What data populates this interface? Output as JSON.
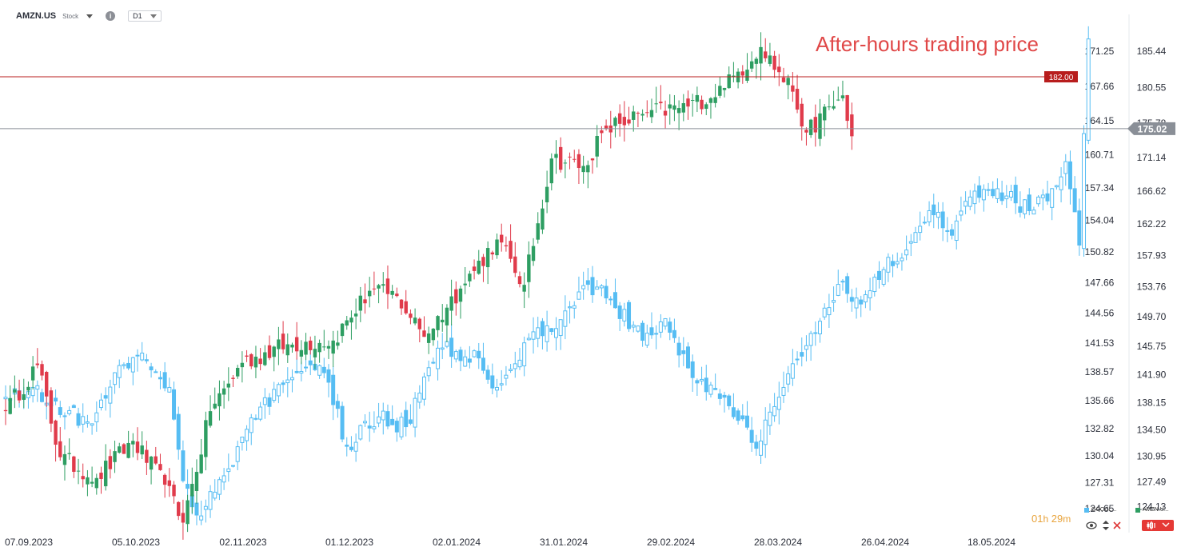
{
  "header": {
    "symbol": "AMZN.US",
    "instrument_type": "Stock",
    "interval": "D1"
  },
  "timer": {
    "hours": "01",
    "h_unit": "h",
    "minutes": "29",
    "m_unit": "m"
  },
  "legend": [
    {
      "name": "GOOGL...",
      "color": "#56bdf3"
    },
    {
      "name": "AMZN.U...",
      "color": "#2e9e62"
    }
  ],
  "colors": {
    "up": "#2e9e62",
    "down": "#e03b4b",
    "compare": "#56bdf3",
    "horizontal_line": "#b81d1d",
    "price_line": "#8a8f97",
    "annotation": "#e04848"
  },
  "chart_data": {
    "type": "candlestick",
    "annotation": "After-hours trading price",
    "x_tick_labels": [
      "07.09.2023",
      "05.10.2023",
      "02.11.2023",
      "01.12.2023",
      "02.01.2024",
      "31.01.2024",
      "29.02.2024",
      "28.03.2024",
      "26.04.2024",
      "18.05.2024"
    ],
    "left_axis": {
      "ylim": [
        122.7,
        175.0
      ],
      "ticks": [
        124.65,
        127.31,
        130.04,
        132.82,
        135.66,
        138.57,
        141.53,
        144.56,
        147.66,
        150.82,
        154.04,
        157.34,
        160.71,
        164.15,
        167.66,
        171.25
      ]
    },
    "right_axis": {
      "ylim": [
        121.3,
        190.4
      ],
      "ticks": [
        124.13,
        127.49,
        130.95,
        134.5,
        138.15,
        141.9,
        145.75,
        149.7,
        153.76,
        157.93,
        162.22,
        166.62,
        171.14,
        175.78,
        180.55,
        185.44
      ]
    },
    "horizontal_line": {
      "value": 182.0,
      "label": "182.00",
      "axis": "right"
    },
    "last_price": {
      "value": 175.02,
      "label": "175.02",
      "axis": "right"
    },
    "series": [
      {
        "name": "AMZN.U...",
        "axis": "right",
        "anchors": [
          {
            "i": 0,
            "close": 137.0
          },
          {
            "i": 7,
            "close": 143.2
          },
          {
            "i": 12,
            "close": 130.8
          },
          {
            "i": 20,
            "close": 128.0
          },
          {
            "i": 28,
            "close": 133.0
          },
          {
            "i": 35,
            "close": 127.1
          },
          {
            "i": 39,
            "close": 122.0
          },
          {
            "i": 45,
            "close": 137.0
          },
          {
            "i": 52,
            "close": 143.5
          },
          {
            "i": 62,
            "close": 146.0
          },
          {
            "i": 72,
            "close": 146.5
          },
          {
            "i": 80,
            "close": 153.2
          },
          {
            "i": 86,
            "close": 152.5
          },
          {
            "i": 92,
            "close": 147.0
          },
          {
            "i": 100,
            "close": 153.5
          },
          {
            "i": 108,
            "close": 160.1
          },
          {
            "i": 114,
            "close": 154.0
          },
          {
            "i": 120,
            "close": 171.0
          },
          {
            "i": 127,
            "close": 170.0
          },
          {
            "i": 132,
            "close": 175.0
          },
          {
            "i": 140,
            "close": 177.0
          },
          {
            "i": 150,
            "close": 178.0
          },
          {
            "i": 158,
            "close": 180.5
          },
          {
            "i": 166,
            "close": 186.0
          },
          {
            "i": 173,
            "close": 180.0
          },
          {
            "i": 176,
            "close": 174.5
          },
          {
            "i": 184,
            "close": 179.5
          },
          {
            "i": 186,
            "close": 174.0
          }
        ]
      },
      {
        "name": "GOOGL...",
        "axis": "left",
        "anchors": [
          {
            "i": 0,
            "close": 136.0
          },
          {
            "i": 6,
            "close": 137.0
          },
          {
            "i": 10,
            "close": 135.5
          },
          {
            "i": 19,
            "close": 133.3
          },
          {
            "i": 24,
            "close": 138.5
          },
          {
            "i": 30,
            "close": 140.5
          },
          {
            "i": 36,
            "close": 137.0
          },
          {
            "i": 39,
            "close": 127.5
          },
          {
            "i": 42,
            "close": 124.0
          },
          {
            "i": 48,
            "close": 128.0
          },
          {
            "i": 56,
            "close": 135.0
          },
          {
            "i": 64,
            "close": 138.5
          },
          {
            "i": 70,
            "close": 138.5
          },
          {
            "i": 75,
            "close": 131.0
          },
          {
            "i": 82,
            "close": 134.0
          },
          {
            "i": 88,
            "close": 133.0
          },
          {
            "i": 95,
            "close": 141.0
          },
          {
            "i": 104,
            "close": 140.0
          },
          {
            "i": 108,
            "close": 137.0
          },
          {
            "i": 115,
            "close": 142.0
          },
          {
            "i": 121,
            "close": 143.0
          },
          {
            "i": 128,
            "close": 147.5
          },
          {
            "i": 133,
            "close": 146.0
          },
          {
            "i": 140,
            "close": 141.8
          },
          {
            "i": 145,
            "close": 144.0
          },
          {
            "i": 151,
            "close": 138.0
          },
          {
            "i": 158,
            "close": 136.0
          },
          {
            "i": 165,
            "close": 130.8
          },
          {
            "i": 171,
            "close": 137.0
          },
          {
            "i": 177,
            "close": 142.5
          },
          {
            "i": 183,
            "close": 147.5
          },
          {
            "i": 188,
            "close": 145.5
          },
          {
            "i": 193,
            "close": 149.0
          },
          {
            "i": 198,
            "close": 151.0
          },
          {
            "i": 203,
            "close": 155.0
          },
          {
            "i": 208,
            "close": 152.5
          },
          {
            "i": 213,
            "close": 157.0
          },
          {
            "i": 220,
            "close": 156.5
          },
          {
            "i": 225,
            "close": 155.0
          },
          {
            "i": 229,
            "close": 156.0
          },
          {
            "i": 233,
            "close": 160.0
          },
          {
            "i": 236,
            "close": 151.5
          },
          {
            "i": 238,
            "close": 172.5
          }
        ]
      }
    ]
  }
}
